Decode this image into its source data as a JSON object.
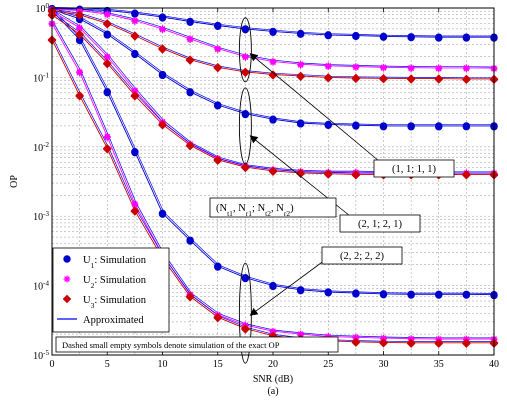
{
  "chart_data": {
    "type": "line",
    "title": "",
    "xlabel": "SNR (dB)",
    "ylabel": "OP",
    "caption": "(a)",
    "x_ticks": [
      "0",
      "5",
      "10",
      "15",
      "20",
      "25",
      "30",
      "35",
      "40"
    ],
    "y_ticks": [
      {
        "base": "10",
        "exp": "0"
      },
      {
        "base": "10",
        "exp": "-1"
      },
      {
        "base": "10",
        "exp": "-2"
      },
      {
        "base": "10",
        "exp": "-3"
      },
      {
        "base": "10",
        "exp": "-4"
      },
      {
        "base": "10",
        "exp": "-5"
      }
    ],
    "xlim": [
      0,
      40
    ],
    "ylim": [
      1e-05,
      1
    ],
    "yscale": "log",
    "grid": true,
    "x": [
      0,
      2.5,
      5,
      7.5,
      10,
      12.5,
      15,
      17.5,
      20,
      22.5,
      25,
      27.5,
      30,
      32.5,
      35,
      37.5,
      40
    ],
    "series": [
      {
        "name": "U1",
        "color": "#0000cc",
        "marker": "circle",
        "groups": [
          [
            0.98,
            0.96,
            0.92,
            0.84,
            0.74,
            0.64,
            0.56,
            0.5,
            0.46,
            0.43,
            0.41,
            0.4,
            0.39,
            0.385,
            0.38,
            0.38,
            0.38
          ],
          [
            0.95,
            0.7,
            0.42,
            0.22,
            0.11,
            0.062,
            0.04,
            0.03,
            0.025,
            0.022,
            0.021,
            0.0205,
            0.02,
            0.02,
            0.02,
            0.02,
            0.02
          ],
          [
            0.92,
            0.35,
            0.062,
            0.0085,
            0.0011,
            0.00045,
            0.00019,
            0.00013,
            0.0001,
            8.7e-05,
            8.1e-05,
            7.8e-05,
            7.6e-05,
            7.5e-05,
            7.5e-05,
            7.5e-05,
            7.4e-05
          ]
        ]
      },
      {
        "name": "U2",
        "color": "#ff00ff",
        "marker": "star",
        "groups": [
          [
            0.96,
            0.92,
            0.82,
            0.66,
            0.5,
            0.36,
            0.26,
            0.2,
            0.17,
            0.155,
            0.147,
            0.143,
            0.14,
            0.138,
            0.137,
            0.137,
            0.136
          ],
          [
            0.9,
            0.52,
            0.2,
            0.065,
            0.023,
            0.011,
            0.0068,
            0.0053,
            0.0047,
            0.0044,
            0.0043,
            0.0043,
            0.0042,
            0.0042,
            0.0042,
            0.0042,
            0.0042
          ],
          [
            0.6,
            0.12,
            0.014,
            0.0015,
            0.00028,
            7.5e-05,
            3.8e-05,
            2.7e-05,
            2.2e-05,
            2e-05,
            1.85e-05,
            1.8e-05,
            1.75e-05,
            1.72e-05,
            1.7e-05,
            1.7e-05,
            1.7e-05
          ]
        ]
      },
      {
        "name": "U3",
        "color": "#cc0000",
        "marker": "diamond",
        "groups": [
          [
            0.92,
            0.8,
            0.6,
            0.4,
            0.26,
            0.18,
            0.14,
            0.12,
            0.11,
            0.105,
            0.1,
            0.098,
            0.097,
            0.096,
            0.096,
            0.095,
            0.095
          ],
          [
            0.8,
            0.42,
            0.16,
            0.055,
            0.021,
            0.0105,
            0.0065,
            0.0051,
            0.0045,
            0.0042,
            0.0041,
            0.004,
            0.004,
            0.004,
            0.004,
            0.004,
            0.004
          ],
          [
            0.35,
            0.055,
            0.0095,
            0.0012,
            0.00025,
            7e-05,
            3.5e-05,
            2.4e-05,
            1.9e-05,
            1.7e-05,
            1.6e-05,
            1.55e-05,
            1.52e-05,
            1.5e-05,
            1.5e-05,
            1.5e-05,
            1.5e-05
          ]
        ]
      }
    ],
    "approx_color": "#0000ff",
    "legend": {
      "placement": "bottom-left",
      "entries": [
        {
          "base": "U",
          "sub": "1",
          "text": ": Simulation",
          "color": "#0000cc",
          "marker": "circle"
        },
        {
          "base": "U",
          "sub": "2",
          "text": ": Simulation",
          "color": "#ff00ff",
          "marker": "star"
        },
        {
          "base": "U",
          "sub": "3",
          "text": ": Simulation",
          "color": "#cc0000",
          "marker": "diamond"
        },
        {
          "base": "",
          "sub": "",
          "text": "Approximated",
          "color": "#0000ff",
          "marker": "line"
        }
      ]
    },
    "note": "Dashed small empty symbols denote simulation of the exact OP",
    "configs": {
      "header_parts": [
        {
          "t": "(N",
          "sub": false
        },
        {
          "t": "t1",
          "sub": true
        },
        {
          "t": ", N",
          "sub": false
        },
        {
          "t": "r1",
          "sub": true
        },
        {
          "t": "; N",
          "sub": false
        },
        {
          "t": "t2",
          "sub": true
        },
        {
          "t": ", N",
          "sub": false
        },
        {
          "t": "r2",
          "sub": true
        },
        {
          "t": ")",
          "sub": false
        }
      ],
      "labels": [
        "(1, 1; 1, 1)",
        "(2, 1; 2, 1)",
        "(2, 2; 2, 2)"
      ]
    }
  }
}
